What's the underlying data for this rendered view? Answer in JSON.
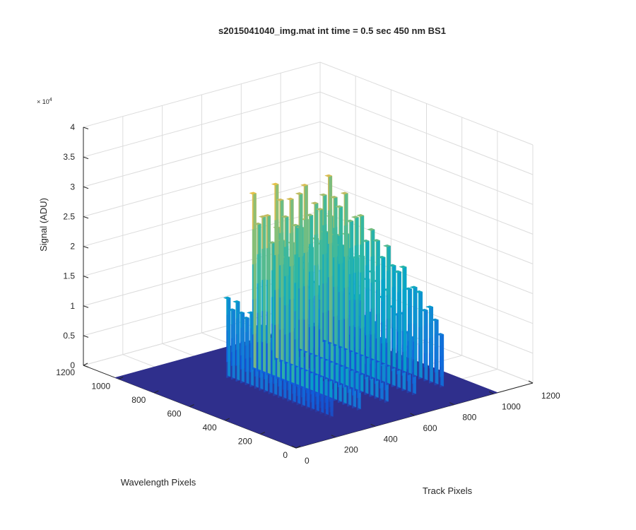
{
  "chart_data": {
    "type": "surface",
    "title": "s2015041040_img.mat int time = 0.5 sec  450 nm BS1",
    "xlabel": "Track Pixels",
    "ylabel": "Wavelength Pixels",
    "zlabel": "Signal (ADU)",
    "z_multiplier_label": "× 10",
    "z_multiplier_exponent": "4",
    "xlim": [
      0,
      1200
    ],
    "ylim": [
      0,
      1200
    ],
    "zlim": [
      0,
      40000
    ],
    "x_ticks": [
      0,
      200,
      400,
      600,
      800,
      1000,
      1200
    ],
    "y_ticks": [
      0,
      200,
      400,
      600,
      800,
      1000,
      1200
    ],
    "z_ticks": [
      0,
      0.5,
      1,
      1.5,
      2,
      2.5,
      3,
      3.5,
      4
    ],
    "x_tick_labels": [
      "0",
      "200",
      "400",
      "600",
      "800",
      "1000",
      "1200"
    ],
    "y_tick_labels": [
      "0",
      "200",
      "400",
      "600",
      "800",
      "1000",
      "1200"
    ],
    "z_tick_labels": [
      "0",
      "0.5",
      "1",
      "1.5",
      "2",
      "2.5",
      "3",
      "3.5",
      "4"
    ],
    "surface_extent": {
      "x": [
        0,
        1024
      ],
      "y": [
        0,
        1024
      ]
    },
    "baseline_signal": 0,
    "peaks": [
      {
        "track_pixel": 340,
        "wavelength_span": [
          180,
          760
        ],
        "peak_signal": 14000
      },
      {
        "track_pixel": 480,
        "wavelength_span": [
          180,
          770
        ],
        "peak_signal": 29500
      },
      {
        "track_pixel": 620,
        "wavelength_span": [
          180,
          800
        ],
        "peak_signal": 30000
      },
      {
        "track_pixel": 760,
        "wavelength_span": [
          180,
          820
        ],
        "peak_signal": 29000
      },
      {
        "track_pixel": 900,
        "wavelength_span": [
          180,
          840
        ],
        "peak_signal": 29000
      }
    ],
    "grid": true,
    "colormap": "parula",
    "colormap_colors": [
      "#352a87",
      "#0f5cdd",
      "#1481d6",
      "#06a4ca",
      "#2eb7a4",
      "#87bf77",
      "#d1bb59",
      "#fec832",
      "#f9fb0e"
    ],
    "floor_color": "#2f2f8c"
  }
}
